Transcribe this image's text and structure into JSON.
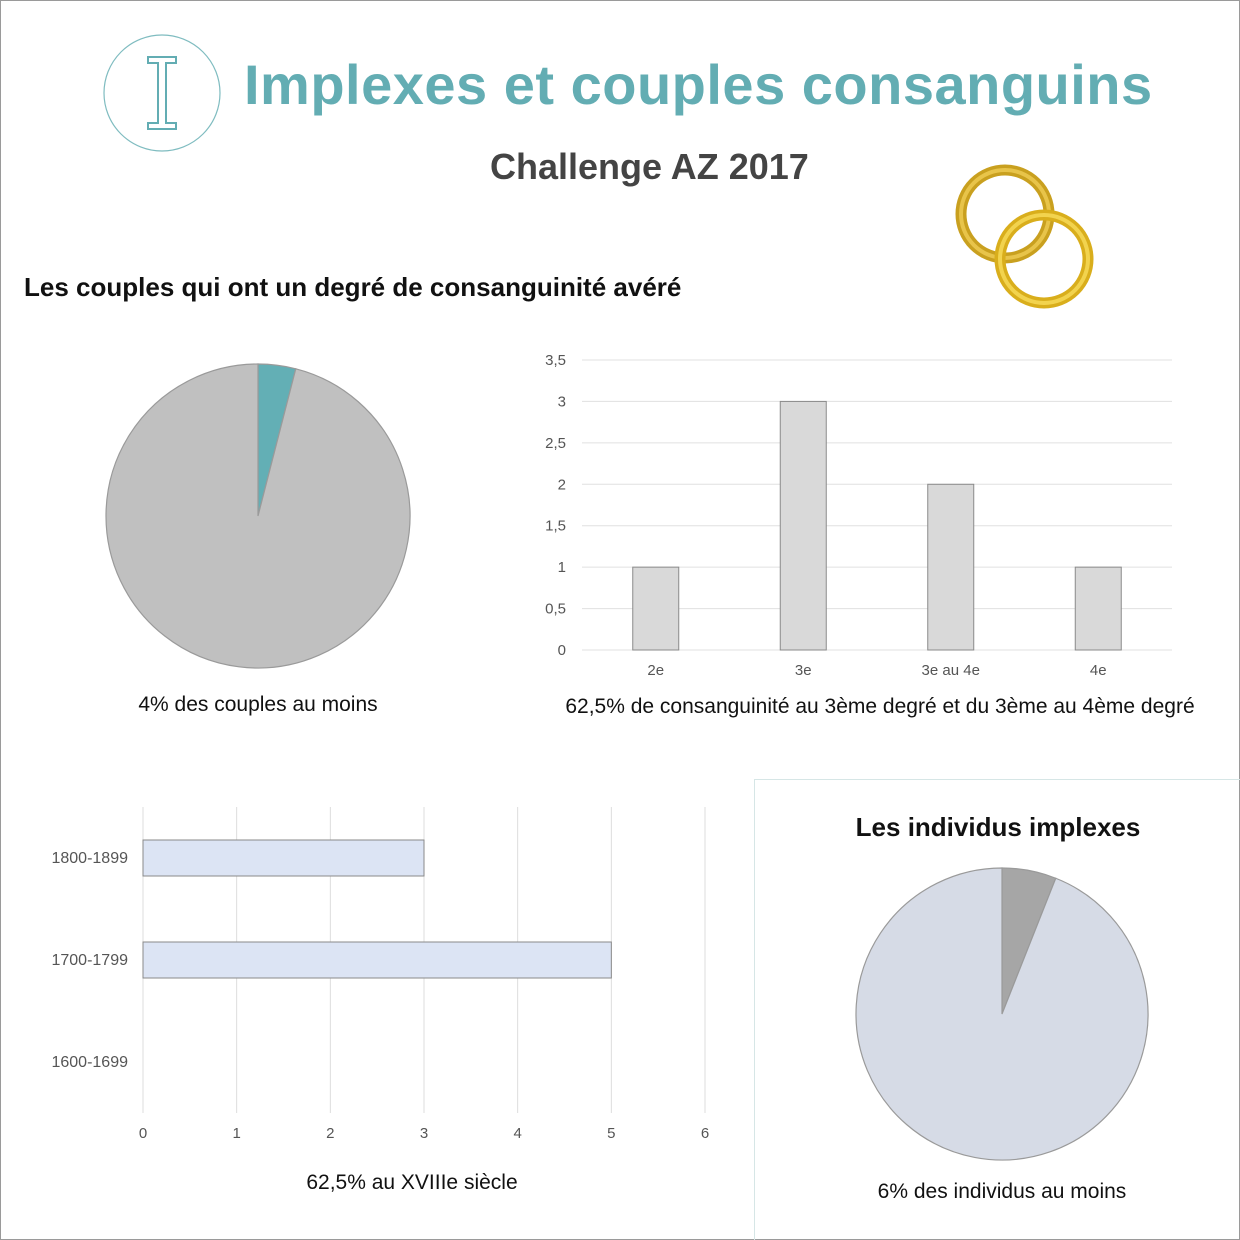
{
  "header": {
    "logo_letter": "I",
    "title": "Implexes et couples consanguins",
    "subtitle": "Challenge AZ 2017"
  },
  "colors": {
    "title": "#63adb3",
    "pie1_main": "#c0c0c0",
    "pie1_slice": "#63afb5",
    "bar_fill": "#d9d9d9",
    "hbar_fill": "#dce4f4",
    "pie2_main": "#d6dbe6",
    "pie2_slice": "#a6a6a6",
    "ring_gold": "#e0b52a"
  },
  "section1": {
    "heading": "Les couples qui ont un degré de consanguinité avéré"
  },
  "chart_data": [
    {
      "id": "couples-pie",
      "type": "pie",
      "values": [
        4,
        96
      ],
      "caption": "4% des couples au moins"
    },
    {
      "id": "degree-bar",
      "type": "bar",
      "categories": [
        "2e",
        "3e",
        "3e au 4e",
        "4e"
      ],
      "values": [
        1,
        3,
        2,
        1
      ],
      "ylim": [
        0,
        3.5
      ],
      "yticks": [
        "0",
        "0,5",
        "1",
        "1,5",
        "2",
        "2,5",
        "3",
        "3,5"
      ],
      "grid": true,
      "caption": "62,5% de consanguinité au 3ème degré et du 3ème au 4ème degré"
    },
    {
      "id": "century-hbar",
      "type": "bar",
      "orientation": "horizontal",
      "categories": [
        "1800-1899",
        "1700-1799",
        "1600-1699"
      ],
      "values": [
        3,
        5,
        0
      ],
      "xlim": [
        0,
        6
      ],
      "xticks": [
        "0",
        "1",
        "2",
        "3",
        "4",
        "5",
        "6"
      ],
      "grid": true,
      "caption": "62,5% au XVIIIe siècle"
    },
    {
      "id": "individus-pie",
      "type": "pie",
      "title": "Les individus implexes",
      "values": [
        6,
        94
      ],
      "caption": "6% des individus au moins"
    }
  ]
}
